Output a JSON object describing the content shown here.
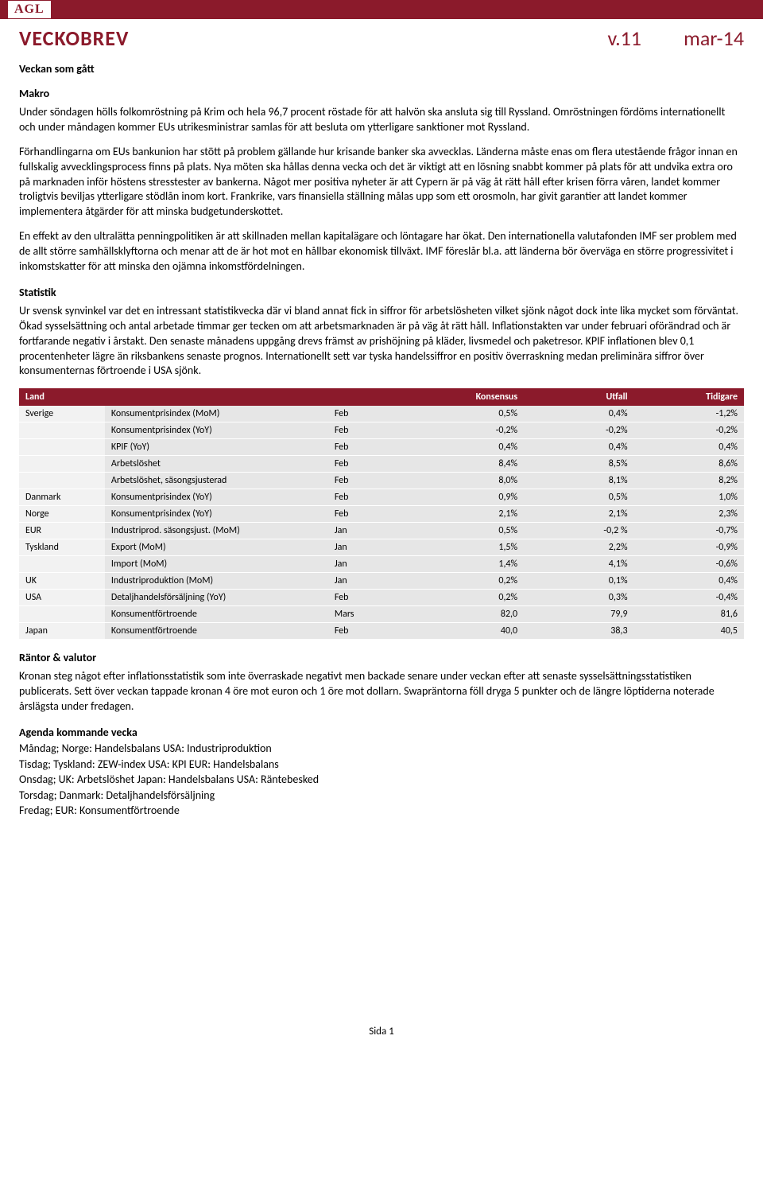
{
  "logo": "AGL",
  "header": {
    "title": "VECKOBREV",
    "version": "v.11",
    "date": "mar-14"
  },
  "sections": {
    "weekTitle": "Veckan som gått",
    "makroHeader": "Makro",
    "makroP1": "Under söndagen hölls folkomröstning på Krim och hela 96,7 procent röstade för att halvön ska ansluta sig till Ryssland. Omröstningen fördöms internationellt och under måndagen kommer EUs utrikesministrar samlas för att besluta om ytterligare sanktioner mot Ryssland.",
    "makroP2": "Förhandlingarna om EUs bankunion har stött på problem gällande hur krisande banker ska avvecklas. Länderna måste enas om flera utestående frågor innan en fullskalig avvecklingsprocess finns på plats. Nya möten ska hållas denna vecka och det är viktigt att en lösning snabbt kommer på plats för att undvika extra oro på marknaden inför höstens stresstester av bankerna. Något mer positiva nyheter är att Cypern är på väg åt rätt håll efter krisen förra våren, landet kommer troligtvis beviljas ytterligare stödlån inom kort. Frankrike, vars finansiella ställning målas upp som ett orosmoln, har givit garantier att landet kommer implementera åtgärder för att minska budgetunderskottet.",
    "makroP3": "En effekt av den ultralätta penningpolitiken är att skillnaden mellan kapitalägare och löntagare har ökat. Den internationella valutafonden IMF ser problem med de allt större samhällsklyftorna och menar att de är hot mot en hållbar ekonomisk tillväxt. IMF föreslår bl.a. att länderna bör överväga en större progressivitet i inkomstskatter för att minska den ojämna inkomstfördelningen.",
    "statistikHeader": "Statistik",
    "statistikP1": "Ur svensk synvinkel var det en intressant statistikvecka där vi bland annat fick in siffror för arbetslösheten vilket sjönk något dock inte lika mycket som förväntat. Ökad sysselsättning och antal arbetade timmar ger tecken om att arbetsmarknaden är på väg åt rätt håll. Inflationstakten var under februari oförändrad och är fortfarande negativ i årstakt. Den senaste månadens uppgång drevs främst av prishöjning på kläder, livsmedel och paketresor. KPIF inflationen blev 0,1 procentenheter lägre än riksbankens senaste prognos. Internationellt sett var tyska handelssiffror en positiv överraskning medan preliminära siffror över konsumenternas förtroende i USA sjönk.",
    "rantorHeader": "Räntor & valutor",
    "rantorP1": "Kronan steg något efter inflationsstatistik som inte överraskade negativt men backade senare under veckan efter att senaste sysselsättningsstatistiken publicerats. Sett över veckan tappade kronan 4 öre mot euron och 1 öre mot dollarn. Swapräntorna föll dryga 5 punkter och de längre löptiderna noterade årslägsta under fredagen.",
    "agendaHeader": "Agenda kommande vecka",
    "agenda": [
      "Måndag; Norge: Handelsbalans USA: Industriproduktion",
      "Tisdag; Tyskland: ZEW-index USA: KPI EUR: Handelsbalans",
      "Onsdag; UK: Arbetslöshet Japan: Handelsbalans USA: Räntebesked",
      "Torsdag; Danmark: Detaljhandelsförsäljning",
      "Fredag; EUR: Konsumentförtroende"
    ]
  },
  "table": {
    "headers": {
      "land": "Land",
      "empty1": "",
      "empty2": "",
      "konsensus": "Konsensus",
      "utfall": "Utfall",
      "tidigare": "Tidigare"
    },
    "rows": [
      {
        "land": "Sverige",
        "indicator": "Konsumentprisindex (MoM)",
        "period": "Feb",
        "konsensus": "0,5%",
        "utfall": "0,4%",
        "tidigare": "-1,2%"
      },
      {
        "land": "",
        "indicator": "Konsumentprisindex (YoY)",
        "period": "Feb",
        "konsensus": "-0,2%",
        "utfall": "-0,2%",
        "tidigare": "-0,2%"
      },
      {
        "land": "",
        "indicator": "KPIF (YoY)",
        "period": "Feb",
        "konsensus": "0,4%",
        "utfall": "0,4%",
        "tidigare": "0,4%"
      },
      {
        "land": "",
        "indicator": "Arbetslöshet",
        "period": "Feb",
        "konsensus": "8,4%",
        "utfall": "8,5%",
        "tidigare": "8,6%"
      },
      {
        "land": "",
        "indicator": "Arbetslöshet, säsongsjusterad",
        "period": "Feb",
        "konsensus": "8,0%",
        "utfall": "8,1%",
        "tidigare": "8,2%"
      },
      {
        "land": "Danmark",
        "indicator": "Konsumentprisindex (YoY)",
        "period": "Feb",
        "konsensus": "0,9%",
        "utfall": "0,5%",
        "tidigare": "1,0%"
      },
      {
        "land": "Norge",
        "indicator": "Konsumentprisindex (YoY)",
        "period": "Feb",
        "konsensus": "2,1%",
        "utfall": "2,1%",
        "tidigare": "2,3%"
      },
      {
        "land": "EUR",
        "indicator": "Industriprod. säsongsjust. (MoM)",
        "period": "Jan",
        "konsensus": "0,5%",
        "utfall": "-0,2 %",
        "tidigare": "-0,7%"
      },
      {
        "land": "Tyskland",
        "indicator": "Export (MoM)",
        "period": "Jan",
        "konsensus": "1,5%",
        "utfall": "2,2%",
        "tidigare": "-0,9%"
      },
      {
        "land": "",
        "indicator": "Import (MoM)",
        "period": "Jan",
        "konsensus": "1,4%",
        "utfall": "4,1%",
        "tidigare": "-0,6%"
      },
      {
        "land": "UK",
        "indicator": "Industriproduktion (MoM)",
        "period": "Jan",
        "konsensus": "0,2%",
        "utfall": "0,1%",
        "tidigare": "0,4%"
      },
      {
        "land": "USA",
        "indicator": "Detaljhandelsförsäljning (YoY)",
        "period": "Feb",
        "konsensus": "0,2%",
        "utfall": "0,3%",
        "tidigare": "-0,4%"
      },
      {
        "land": "",
        "indicator": "Konsumentförtroende",
        "period": "Mars",
        "konsensus": "82,0",
        "utfall": "79,9",
        "tidigare": "81,6"
      },
      {
        "land": "Japan",
        "indicator": "Konsumentförtroende",
        "period": "Feb",
        "konsensus": "40,0",
        "utfall": "38,3",
        "tidigare": "40,5"
      }
    ]
  },
  "footer": "Sida 1",
  "colors": {
    "brand": "#8b1a2b",
    "rowDark": "#e6e6e6",
    "rowLight": "#f2f2f2"
  }
}
